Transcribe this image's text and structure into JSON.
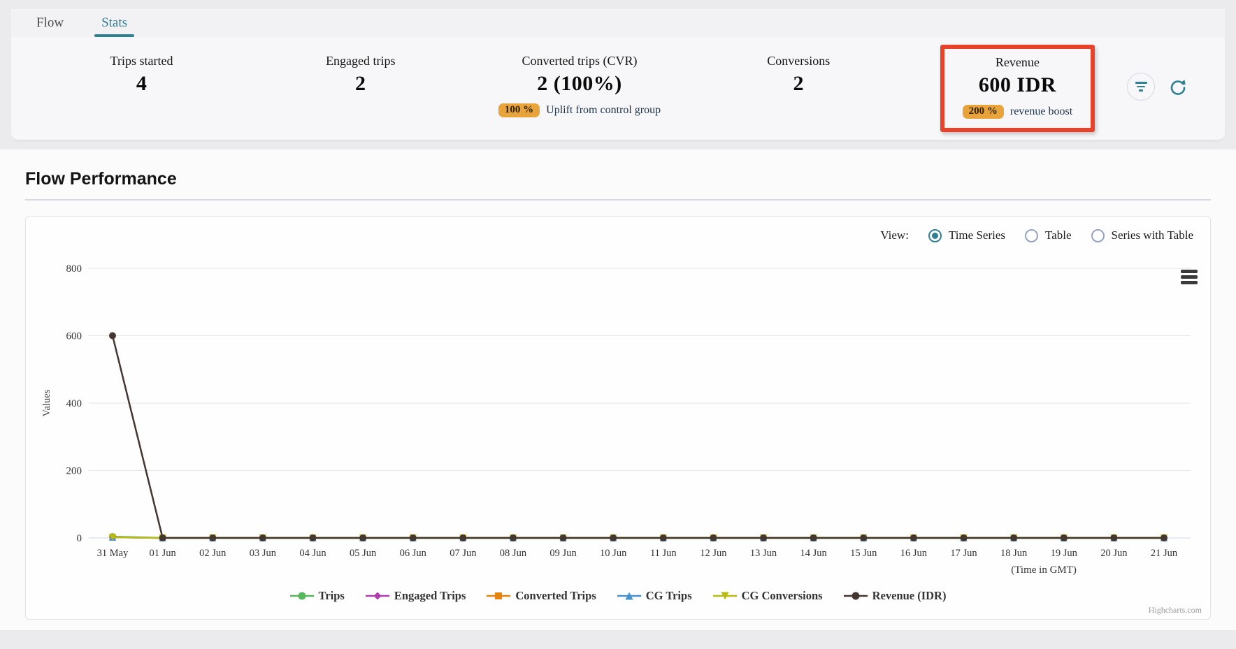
{
  "tabs": [
    {
      "label": "Flow",
      "active": false
    },
    {
      "label": "Stats",
      "active": true
    }
  ],
  "stats": [
    {
      "label": "Trips started",
      "value": "4"
    },
    {
      "label": "Engaged trips",
      "value": "2"
    },
    {
      "label": "Converted trips (CVR)",
      "value": "2 (100%)",
      "badge": "100 %",
      "badge_caption": "Uplift from control group"
    },
    {
      "label": "Conversions",
      "value": "2"
    },
    {
      "label": "Revenue",
      "value": "600 IDR",
      "badge": "200 %",
      "badge_caption": "revenue boost",
      "highlighted": true
    }
  ],
  "section": {
    "title": "Flow Performance"
  },
  "view_controls": {
    "label": "View:",
    "options": [
      {
        "label": "Time Series",
        "selected": true
      },
      {
        "label": "Table",
        "selected": false
      },
      {
        "label": "Series with Table",
        "selected": false
      }
    ]
  },
  "chart_data": {
    "type": "line",
    "title": "",
    "ylabel": "Values",
    "xlabel": "(Time in GMT)",
    "ylim": [
      0,
      800
    ],
    "yticks": [
      0,
      200,
      400,
      600,
      800
    ],
    "grid": true,
    "legend_position": "bottom",
    "categories": [
      "31 May",
      "01 Jun",
      "02 Jun",
      "03 Jun",
      "04 Jun",
      "05 Jun",
      "06 Jun",
      "07 Jun",
      "08 Jun",
      "09 Jun",
      "10 Jun",
      "11 Jun",
      "12 Jun",
      "13 Jun",
      "14 Jun",
      "15 Jun",
      "16 Jun",
      "17 Jun",
      "18 Jun",
      "19 Jun",
      "20 Jun",
      "21 Jun"
    ],
    "series": [
      {
        "name": "Trips",
        "color": "#56b75c",
        "marker": "circle",
        "values": [
          4,
          0,
          0,
          0,
          0,
          0,
          0,
          0,
          0,
          0,
          0,
          0,
          0,
          0,
          0,
          0,
          0,
          0,
          0,
          0,
          0,
          0
        ]
      },
      {
        "name": "Engaged Trips",
        "color": "#b23cb2",
        "marker": "diamond",
        "values": [
          2,
          0,
          0,
          0,
          0,
          0,
          0,
          0,
          0,
          0,
          0,
          0,
          0,
          0,
          0,
          0,
          0,
          0,
          0,
          0,
          0,
          0
        ]
      },
      {
        "name": "Converted Trips",
        "color": "#e5820e",
        "marker": "square",
        "values": [
          2,
          0,
          0,
          0,
          0,
          0,
          0,
          0,
          0,
          0,
          0,
          0,
          0,
          0,
          0,
          0,
          0,
          0,
          0,
          0,
          0,
          0
        ]
      },
      {
        "name": "CG Trips",
        "color": "#4493cf",
        "marker": "triangle",
        "values": [
          2,
          0,
          0,
          0,
          0,
          0,
          0,
          0,
          0,
          0,
          0,
          0,
          0,
          0,
          0,
          0,
          0,
          0,
          0,
          0,
          0,
          0
        ]
      },
      {
        "name": "CG Conversions",
        "color": "#b9ba12",
        "marker": "triangle-down",
        "values": [
          2,
          0,
          0,
          0,
          0,
          0,
          0,
          0,
          0,
          0,
          0,
          0,
          0,
          0,
          0,
          0,
          0,
          0,
          0,
          0,
          0,
          0
        ]
      },
      {
        "name": "Revenue (IDR)",
        "color": "#443630",
        "marker": "circle",
        "values": [
          600,
          0,
          0,
          0,
          0,
          0,
          0,
          0,
          0,
          0,
          0,
          0,
          0,
          0,
          0,
          0,
          0,
          0,
          0,
          0,
          0,
          0
        ]
      }
    ],
    "axis_line_color": "#ccd6eb",
    "grid_color": "#e7e7e7",
    "credits": "Highcharts.com"
  },
  "colors": {
    "accent_teal": "#2e8092",
    "badge_orange": "#e9a33b",
    "highlight_red": "#e8432a",
    "caption_navy": "#1d3349"
  }
}
